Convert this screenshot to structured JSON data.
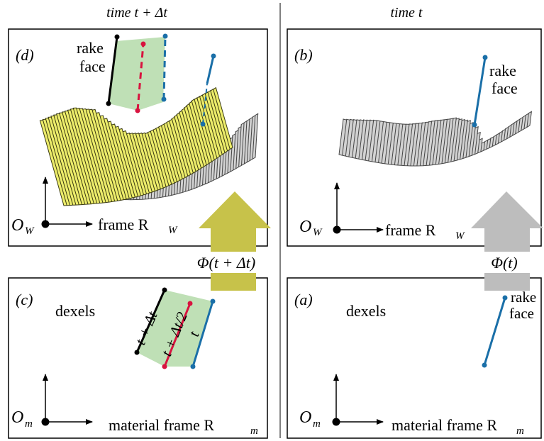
{
  "headers": {
    "left": "time t + Δt",
    "right": "time t"
  },
  "panels": {
    "d": {
      "tag": "(d)",
      "rake": [
        "rake",
        "face"
      ],
      "origin": "O",
      "origin_sub": "W",
      "frame": "frame R",
      "frame_sub": "W"
    },
    "b": {
      "tag": "(b)",
      "rake": [
        "rake",
        "face"
      ],
      "origin": "O",
      "origin_sub": "W",
      "frame": "frame R",
      "frame_sub": "W"
    },
    "c": {
      "tag": "(c)",
      "dexels": "dexels",
      "t_plus": "t + Δt",
      "t_half": "t + Δt/2",
      "t": "t",
      "origin": "O",
      "origin_sub": "m",
      "frame": "material frame R",
      "frame_sub": "m"
    },
    "a": {
      "tag": "(a)",
      "dexels": "dexels",
      "rake": [
        "rake",
        "face"
      ],
      "origin": "O",
      "origin_sub": "m",
      "frame": "material frame R",
      "frame_sub": "m"
    }
  },
  "arrows": {
    "left_label": "Φ(t + Δt)",
    "right_label": "Φ(t)"
  },
  "colors": {
    "yellow": "#ECEC6A",
    "yellow_stroke": "#3a3a12",
    "gray": "#D2D2D2",
    "gray_stroke": "#454545",
    "green": "#BFE0B6",
    "blue": "#1A6FA8",
    "red": "#D8133F",
    "arrow_olive": "#C7C24A",
    "arrow_gray": "#BDBDBD"
  }
}
